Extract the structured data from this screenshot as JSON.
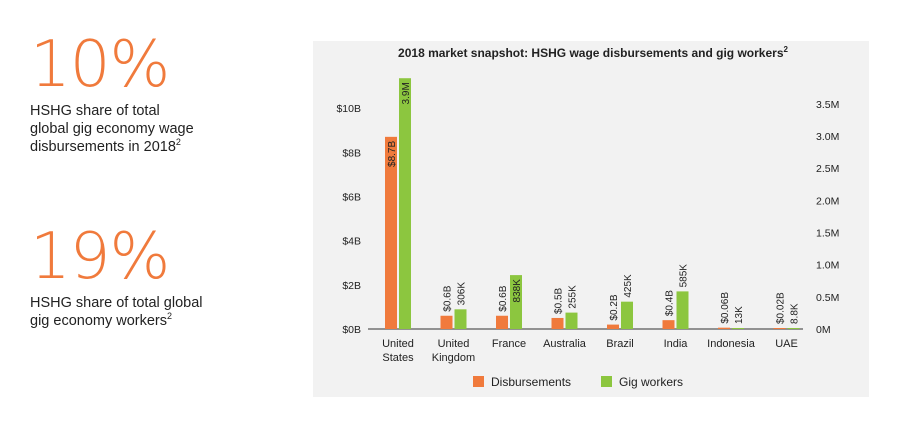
{
  "stats": [
    {
      "value": "10%",
      "line1": "HSHG share of total",
      "line2": "global gig economy wage",
      "line3": "disbursements in 2018",
      "footnote": "2"
    },
    {
      "value": "19%",
      "line1": "HSHG share of total global",
      "line2": "gig economy workers",
      "line3": "",
      "footnote": "2"
    }
  ],
  "colors": {
    "accent": "#f07a3c",
    "disbursements": "#f07a3c",
    "gig_workers": "#8cc63f",
    "panel": "#f2f2f2",
    "axis": "#333333"
  },
  "chart_data": {
    "type": "bar",
    "title": "2018 market snapshot: HSHG wage disbursements and gig workers",
    "title_footnote": "2",
    "categories": [
      [
        "United",
        "States"
      ],
      [
        "United",
        "Kingdom"
      ],
      [
        "France"
      ],
      [
        "Australia"
      ],
      [
        "Brazil"
      ],
      [
        "India"
      ],
      [
        "Indonesia"
      ],
      [
        "UAE"
      ]
    ],
    "series": [
      {
        "name": "Disbursements",
        "axis": "left",
        "values": [
          8.7,
          0.6,
          0.6,
          0.5,
          0.2,
          0.4,
          0.06,
          0.02
        ],
        "labels": [
          "$8.7B",
          "$0.6B",
          "$0.6B",
          "$0.5B",
          "$0.2B",
          "$0.4B",
          "$0.06B",
          "$0.02B"
        ]
      },
      {
        "name": "Gig workers",
        "axis": "right",
        "values": [
          3.9,
          0.306,
          0.838,
          0.255,
          0.425,
          0.585,
          0.013,
          0.0088
        ],
        "labels": [
          "3.9M",
          "306K",
          "838K",
          "255K",
          "425K",
          "585K",
          "13K",
          "8.8K"
        ]
      }
    ],
    "left_axis": {
      "ticks": [
        0,
        2,
        4,
        6,
        8,
        10
      ],
      "tick_labels": [
        "$0B",
        "$2B",
        "$4B",
        "$6B",
        "$8B",
        "$10B"
      ],
      "range": [
        0,
        11.5
      ]
    },
    "right_axis": {
      "ticks": [
        0,
        0.5,
        1.0,
        1.5,
        2.0,
        2.5,
        3.0,
        3.5
      ],
      "tick_labels": [
        "0M",
        "0.5M",
        "1.0M",
        "1.5M",
        "2.0M",
        "2.5M",
        "3.0M",
        "3.5M"
      ],
      "range": [
        0,
        3.95
      ]
    },
    "legend": {
      "placement": "bottom",
      "entries": [
        "Disbursements",
        "Gig workers"
      ]
    },
    "grid": false
  }
}
